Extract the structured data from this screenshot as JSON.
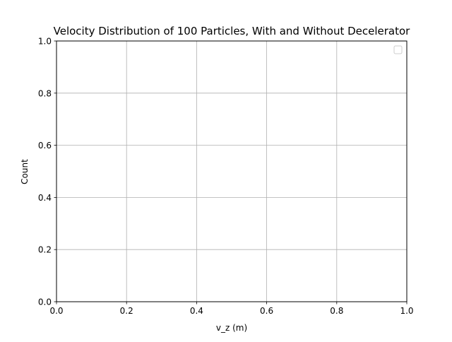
{
  "chart_data": {
    "type": "bar",
    "title": "Velocity Distribution of 100 Particles, With and Without Decelerator",
    "xlabel": "v_z (m)",
    "ylabel": "Count",
    "xlim": [
      0.0,
      1.0
    ],
    "ylim": [
      0.0,
      1.0
    ],
    "xticks": [
      0.0,
      0.2,
      0.4,
      0.6,
      0.8,
      1.0
    ],
    "yticks": [
      0.0,
      0.2,
      0.4,
      0.6,
      0.8,
      1.0
    ],
    "xtick_labels": [
      "0.0",
      "0.2",
      "0.4",
      "0.6",
      "0.8",
      "1.0"
    ],
    "ytick_labels": [
      "0.0",
      "0.2",
      "0.4",
      "0.6",
      "0.8",
      "1.0"
    ],
    "grid": true,
    "legend_position": "top-right",
    "legend_entries": [],
    "series": [],
    "colors": {
      "grid": "#b0b0b0",
      "axes": "#000000",
      "background": "#ffffff",
      "legend_border": "#cccccc"
    }
  }
}
